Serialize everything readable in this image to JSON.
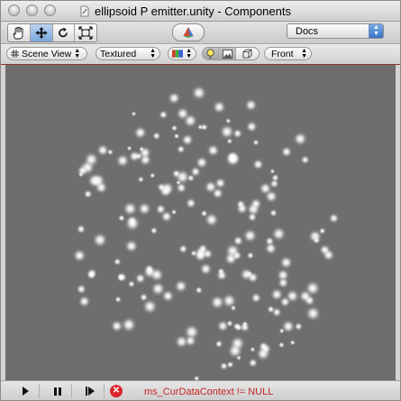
{
  "window": {
    "title": "ellipsoid P emitter.unity - Components",
    "controls": [
      "close-button",
      "minimize-button",
      "zoom-button"
    ]
  },
  "toolbar": {
    "tools": [
      {
        "name": "hand",
        "icon": "hand-icon",
        "active": false
      },
      {
        "name": "move",
        "icon": "move-arrows-icon",
        "active": true
      },
      {
        "name": "rotate",
        "icon": "rotate-icon",
        "active": false
      },
      {
        "name": "scale",
        "icon": "scale-icon",
        "active": false
      }
    ],
    "layers_icon": "layers-icon",
    "docs_label": "Docs"
  },
  "scene_bar": {
    "view_mode": "Scene View",
    "draw_mode": "Textured",
    "color_icon": "rgb-channels-icon",
    "toggles": [
      {
        "icon": "light-bulb-icon",
        "on": true
      },
      {
        "icon": "image-icon",
        "on": true
      },
      {
        "icon": "cube-icon",
        "on": false
      }
    ],
    "camera_view": "Front"
  },
  "viewport": {
    "background": "#6e6e6e",
    "particle_color": "#ffffff",
    "particle_count": 180
  },
  "status_bar": {
    "playback": [
      "play-icon",
      "pause-icon",
      "step-icon"
    ],
    "error_icon": "error-icon",
    "error_text": "ms_CurDataContext != NULL",
    "error_color": "#c42424"
  }
}
